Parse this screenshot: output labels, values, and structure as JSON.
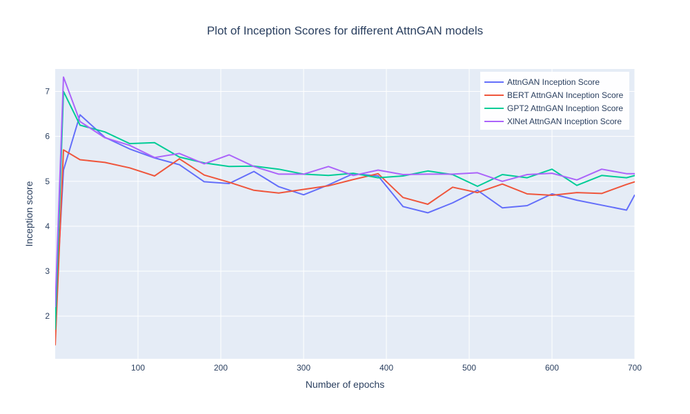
{
  "chart_data": {
    "type": "line",
    "title": "Plot of Inception Scores for different AttnGAN models",
    "xlabel": "Number of epochs",
    "ylabel": "Inception score",
    "xlim": [
      0,
      700
    ],
    "ylim": [
      1.05,
      7.5
    ],
    "xticks": [
      100,
      200,
      300,
      400,
      500,
      600,
      700
    ],
    "yticks": [
      2,
      3,
      4,
      5,
      6,
      7
    ],
    "grid": true,
    "legend_position": "top-right",
    "x": [
      0,
      10,
      30,
      60,
      90,
      120,
      150,
      180,
      210,
      240,
      270,
      300,
      330,
      360,
      390,
      420,
      450,
      480,
      510,
      540,
      570,
      600,
      630,
      660,
      690,
      700
    ],
    "series": [
      {
        "name": "AttnGAN Inception Score",
        "color": "#636efa",
        "values": [
          1.95,
          5.25,
          6.48,
          5.98,
          5.72,
          5.52,
          5.37,
          4.99,
          4.95,
          5.22,
          4.88,
          4.7,
          4.92,
          5.17,
          5.12,
          4.44,
          4.3,
          4.52,
          4.8,
          4.41,
          4.46,
          4.72,
          4.58,
          4.47,
          4.36,
          4.7
        ]
      },
      {
        "name": "BERT AttnGAN Inception Score",
        "color": "#ef553b",
        "values": [
          1.35,
          5.7,
          5.48,
          5.42,
          5.3,
          5.12,
          5.5,
          5.14,
          4.98,
          4.8,
          4.74,
          4.82,
          4.9,
          5.04,
          5.17,
          4.64,
          4.49,
          4.87,
          4.75,
          4.94,
          4.72,
          4.69,
          4.75,
          4.73,
          4.93,
          4.99
        ]
      },
      {
        "name": "GPT2 AttnGAN Inception Score",
        "color": "#00cc96",
        "values": [
          1.7,
          7.0,
          6.25,
          6.1,
          5.84,
          5.86,
          5.54,
          5.41,
          5.33,
          5.34,
          5.27,
          5.16,
          5.13,
          5.18,
          5.08,
          5.12,
          5.23,
          5.15,
          4.89,
          5.15,
          5.08,
          5.27,
          4.91,
          5.13,
          5.08,
          5.13
        ]
      },
      {
        "name": "XlNet AttnGAN Inception Score",
        "color": "#ab63fa",
        "values": [
          2.2,
          7.32,
          6.33,
          5.97,
          5.8,
          5.53,
          5.62,
          5.39,
          5.59,
          5.33,
          5.16,
          5.16,
          5.33,
          5.13,
          5.25,
          5.15,
          5.16,
          5.16,
          5.19,
          5.0,
          5.15,
          5.18,
          5.03,
          5.27,
          5.17,
          5.17
        ]
      }
    ]
  }
}
